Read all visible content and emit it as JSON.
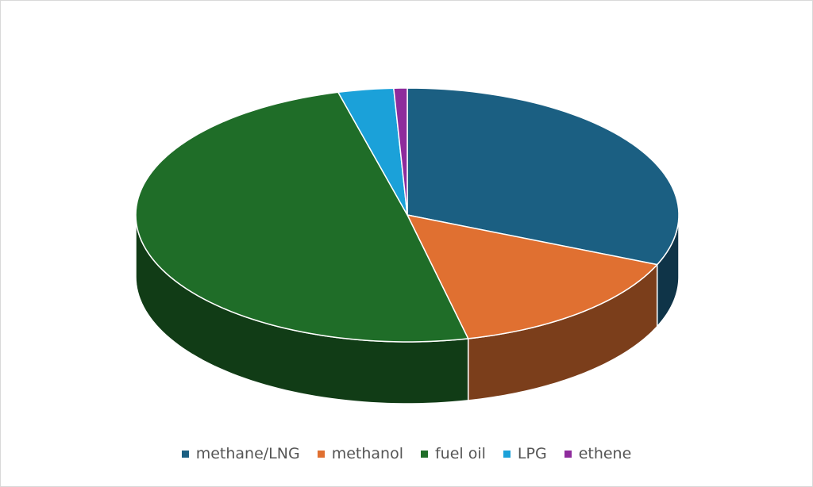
{
  "chart_data": {
    "type": "pie",
    "categories": [
      "methane/LNG",
      "methanol",
      "fuel oil",
      "LPG",
      "ethene"
    ],
    "values": [
      31.4,
      15,
      49.5,
      3.3,
      0.8
    ],
    "colors": [
      "#1b5f82",
      "#e07031",
      "#1f6d28",
      "#1ba1d9",
      "#8e2b9c"
    ],
    "legend": "bottom"
  }
}
